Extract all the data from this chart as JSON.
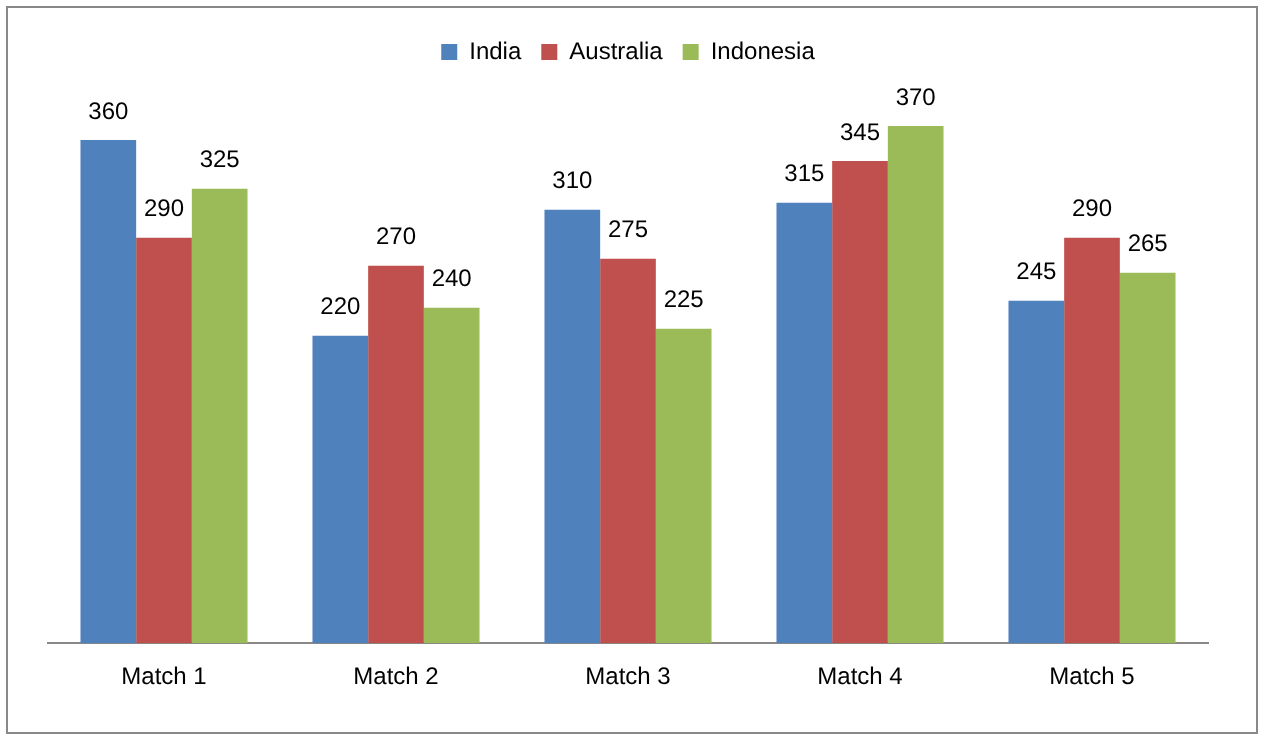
{
  "chart_data": {
    "type": "bar",
    "categories": [
      "Match 1",
      "Match 2",
      "Match 3",
      "Match 4",
      "Match 5"
    ],
    "series": [
      {
        "name": "India",
        "color": "#4f81bd",
        "values": [
          360,
          220,
          310,
          315,
          245
        ]
      },
      {
        "name": "Australia",
        "color": "#c0504d",
        "values": [
          290,
          270,
          275,
          345,
          290
        ]
      },
      {
        "name": "Indonesia",
        "color": "#9bbb59",
        "values": [
          325,
          240,
          225,
          370,
          265
        ]
      }
    ],
    "data_labels": true,
    "legend": "top",
    "grid": false
  }
}
